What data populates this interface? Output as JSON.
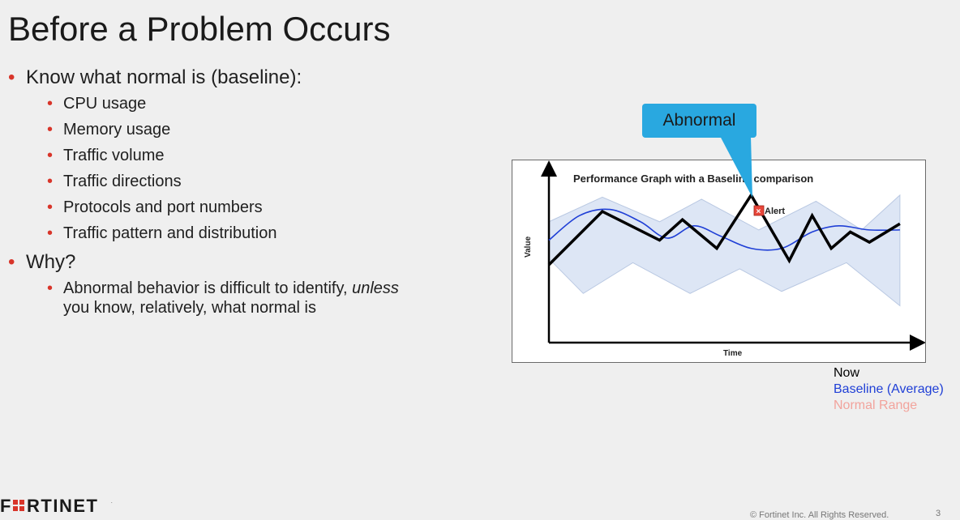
{
  "title": "Before a Problem Occurs",
  "bullets": [
    {
      "text": "Know what normal is (baseline):",
      "sub": [
        "CPU usage",
        "Memory usage",
        "Traffic volume",
        "Traffic directions",
        "Protocols and port numbers",
        "Traffic pattern and distribution"
      ]
    },
    {
      "text": "Why?",
      "sub_rich": {
        "prefix": "Abnormal behavior is difficult to identify,",
        "emphasis": "unless",
        "suffix": "you know, relatively, what normal is"
      }
    }
  ],
  "callout": {
    "label": "Abnormal",
    "color": "#29a8e0"
  },
  "legend": {
    "now": {
      "label": "Now",
      "color": "#000000"
    },
    "baseline": {
      "label": "Baseline (Average)",
      "color": "#1f3fd6"
    },
    "range": {
      "label": "Normal Range",
      "color": "#f2a39c"
    }
  },
  "chart_data": {
    "type": "line",
    "title": "Performance Graph with a Baseline comparison",
    "xlabel": "Time",
    "ylabel": "Value",
    "alert_label": "Alert",
    "series": [
      {
        "name": "Now",
        "color": "#000000",
        "points": [
          [
            0,
            3.8
          ],
          [
            1.4,
            6.4
          ],
          [
            2.9,
            5.0
          ],
          [
            3.5,
            6.0
          ],
          [
            4.4,
            4.6
          ],
          [
            5.3,
            7.2
          ],
          [
            6.3,
            4.0
          ],
          [
            6.9,
            6.2
          ],
          [
            7.4,
            4.6
          ],
          [
            7.9,
            5.4
          ],
          [
            8.4,
            4.9
          ],
          [
            9.2,
            5.8
          ]
        ]
      },
      {
        "name": "Baseline (Average)",
        "color": "#1f3fd6",
        "points": [
          [
            0,
            5.0
          ],
          [
            0.8,
            6.2
          ],
          [
            1.6,
            6.5
          ],
          [
            2.4,
            5.9
          ],
          [
            3.1,
            5.1
          ],
          [
            3.8,
            5.7
          ],
          [
            4.5,
            5.2
          ],
          [
            5.3,
            4.6
          ],
          [
            6.1,
            4.6
          ],
          [
            6.9,
            5.4
          ],
          [
            7.6,
            5.7
          ],
          [
            8.4,
            5.5
          ],
          [
            9.2,
            5.5
          ]
        ]
      }
    ],
    "range": {
      "name": "Normal Range",
      "upper": [
        [
          0,
          5.9
        ],
        [
          1.4,
          7.1
        ],
        [
          2.9,
          5.9
        ],
        [
          4.0,
          7.0
        ],
        [
          5.5,
          5.5
        ],
        [
          7.0,
          6.9
        ],
        [
          8.2,
          5.5
        ],
        [
          9.2,
          7.2
        ]
      ],
      "lower": [
        [
          0,
          4.1
        ],
        [
          0.9,
          2.4
        ],
        [
          2.2,
          3.9
        ],
        [
          3.7,
          2.4
        ],
        [
          5.0,
          3.6
        ],
        [
          6.1,
          2.5
        ],
        [
          7.8,
          3.9
        ],
        [
          9.2,
          1.8
        ]
      ]
    },
    "xlim": [
      0,
      9.5
    ],
    "ylim": [
      0,
      8.5
    ],
    "grid": false
  },
  "logo": {
    "text": "FORTINET"
  },
  "footer": {
    "copyright": "© Fortinet Inc. All Rights Reserved.",
    "page": "3"
  }
}
